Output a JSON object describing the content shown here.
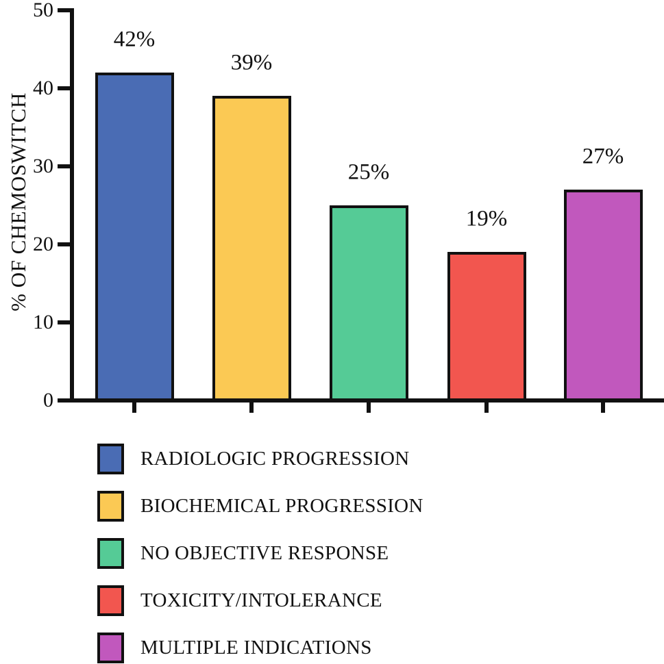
{
  "figure": {
    "background": "#ffffff",
    "axis_color": "#111111",
    "text_color": "#111111"
  },
  "chart_data": {
    "type": "bar",
    "title": "",
    "xlabel": "",
    "ylabel": "% OF CHEMOSWITCH",
    "ylim": [
      0,
      50
    ],
    "yticks": [
      0,
      10,
      20,
      30,
      40,
      50
    ],
    "ytick_labels": [
      "0",
      "10",
      "20",
      "30",
      "40",
      "50"
    ],
    "grid": false,
    "legend_position": "bottom-left",
    "categories": [
      "RADIOLOGIC PROGRESSION",
      "BIOCHEMICAL PROGRESSION",
      "NO OBJECTIVE RESPONSE",
      "TOXICITY/INTOLERANCE",
      "MULTIPLE INDICATIONS"
    ],
    "values": [
      42,
      39,
      25,
      19,
      27
    ],
    "value_labels": [
      "42%",
      "39%",
      "25%",
      "19%",
      "27%"
    ],
    "colors": [
      "#4A6CB4",
      "#FBC954",
      "#55CB96",
      "#F2564F",
      "#C158BD"
    ],
    "bar_border_color": "#111111"
  }
}
